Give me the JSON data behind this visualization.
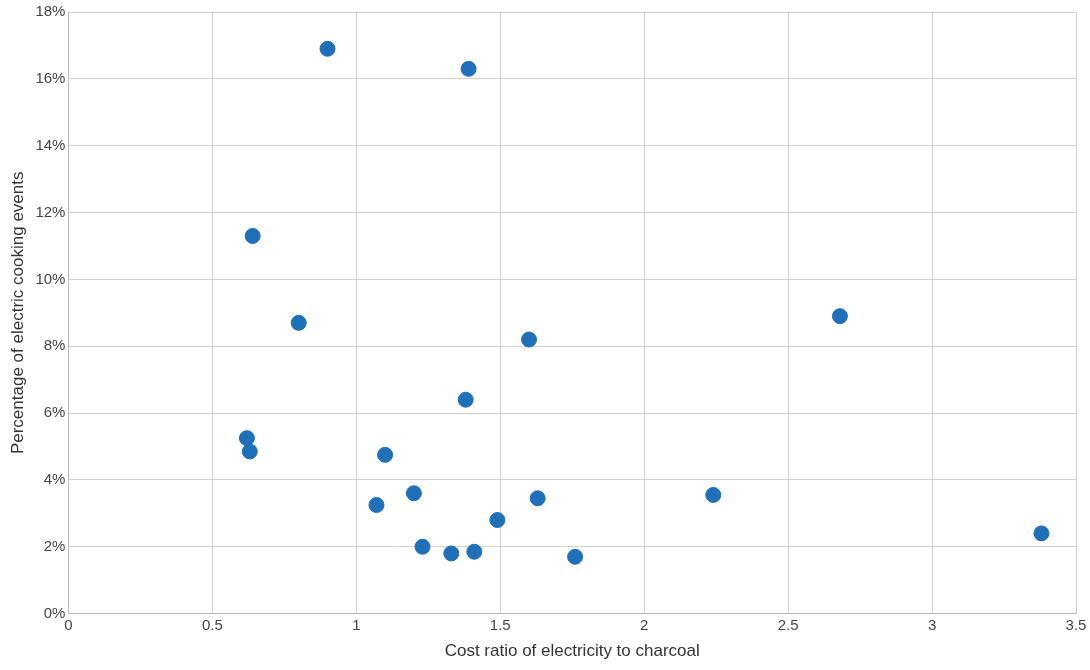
{
  "chart_data": {
    "type": "scatter",
    "xlabel": "Cost ratio of electricity to charcoal",
    "ylabel": "Percentage of electric cooking events",
    "x": [
      0.9,
      1.39,
      0.64,
      0.8,
      1.6,
      2.68,
      1.38,
      0.62,
      0.63,
      1.1,
      1.2,
      1.07,
      1.63,
      2.24,
      1.49,
      1.23,
      1.33,
      1.41,
      1.76,
      3.38
    ],
    "series": [
      {
        "color": "#1f70b8",
        "values": [
          16.9,
          16.3,
          11.3,
          8.7,
          8.2,
          8.9,
          6.4,
          5.25,
          4.85,
          4.75,
          3.6,
          3.25,
          3.45,
          3.55,
          2.8,
          2.0,
          1.8,
          1.85,
          1.7,
          2.4
        ]
      }
    ],
    "xlim": [
      0,
      3.5
    ],
    "xticks": [
      0,
      0.5,
      1,
      1.5,
      2,
      2.5,
      3,
      3.5
    ],
    "ylim": [
      0,
      18
    ],
    "yticks": [
      {
        "value": 0,
        "label": "0%"
      },
      {
        "value": 2,
        "label": "2%"
      },
      {
        "value": 4,
        "label": "4%"
      },
      {
        "value": 6,
        "label": "6%"
      },
      {
        "value": 8,
        "label": "8%"
      },
      {
        "value": 10,
        "label": "10%"
      },
      {
        "value": 12,
        "label": "12%"
      },
      {
        "value": 14,
        "label": "14%"
      },
      {
        "value": 16,
        "label": "16%"
      },
      {
        "value": 18,
        "label": "18%"
      }
    ],
    "grid": true,
    "legend": false,
    "marker": "circle"
  }
}
